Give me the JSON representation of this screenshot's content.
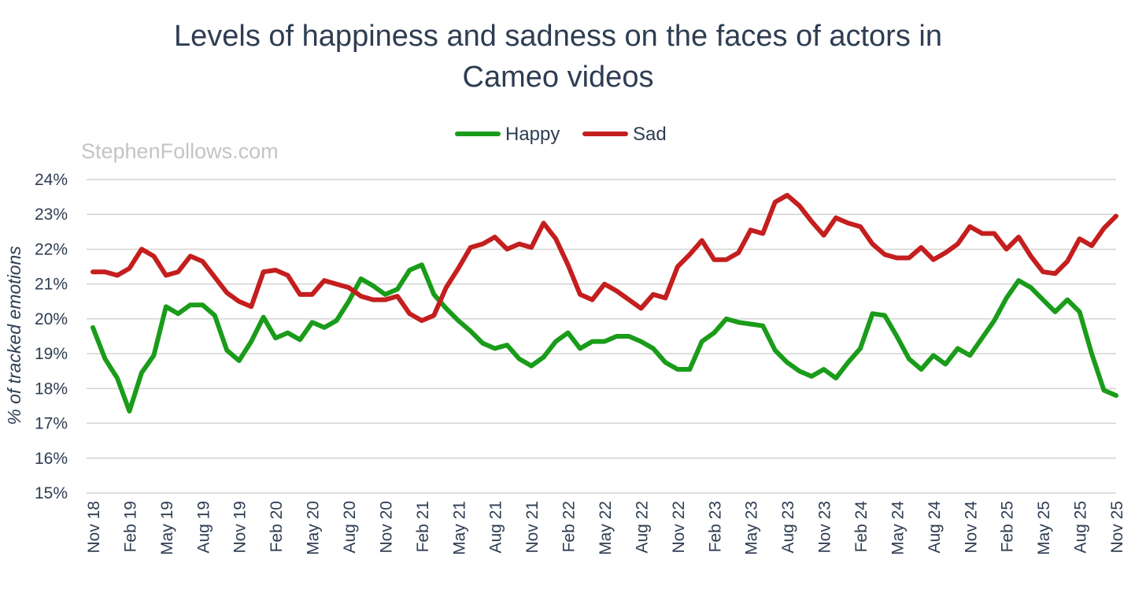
{
  "chart_data": {
    "type": "line",
    "title_lines": [
      "Levels of happiness and sadness on the faces of actors in",
      "Cameo videos"
    ],
    "ylabel": "% of tracked emotions",
    "xlabel": "",
    "watermark": "StephenFollows.com",
    "ylim": [
      15,
      24
    ],
    "yticks": [
      15,
      16,
      17,
      18,
      19,
      20,
      21,
      22,
      23,
      24
    ],
    "ytick_labels": [
      "15%",
      "16%",
      "17%",
      "18%",
      "19%",
      "20%",
      "21%",
      "22%",
      "23%",
      "24%"
    ],
    "grid": true,
    "legend_position": "top-center",
    "x_start": "Nov 18",
    "num_points": 85,
    "xtick_labels": [
      "Nov 18",
      "Feb 19",
      "May 19",
      "Aug 19",
      "Nov 19",
      "Feb 20",
      "May 20",
      "Aug 20",
      "Nov 20",
      "Feb 21",
      "May 21",
      "Aug 21",
      "Nov 21",
      "Feb 22",
      "May 22",
      "Aug 22",
      "Nov 22",
      "Feb 23",
      "May 23",
      "Aug 23",
      "Nov 23",
      "Feb 24",
      "May 24",
      "Aug 24",
      "Nov 24",
      "Feb 25",
      "May 25",
      "Aug 25",
      "Nov 25"
    ],
    "series": [
      {
        "name": "Happy",
        "color": "#1a9c1a",
        "values": [
          19.75,
          18.85,
          18.3,
          17.35,
          18.45,
          18.95,
          20.35,
          20.15,
          20.4,
          20.4,
          20.1,
          19.1,
          18.8,
          19.35,
          20.05,
          19.45,
          19.6,
          19.4,
          19.9,
          19.75,
          19.95,
          20.5,
          21.15,
          20.95,
          20.7,
          20.85,
          21.4,
          21.55,
          20.7,
          20.3,
          19.95,
          19.65,
          19.3,
          19.15,
          19.25,
          18.85,
          18.65,
          18.9,
          19.35,
          19.6,
          19.15,
          19.35,
          19.35,
          19.5,
          19.5,
          19.35,
          19.15,
          18.75,
          18.55,
          18.55,
          19.35,
          19.6,
          20.0,
          19.9,
          19.85,
          19.8,
          19.1,
          18.75,
          18.5,
          18.35,
          18.55,
          18.3,
          18.75,
          19.15,
          20.15,
          20.1,
          19.5,
          18.85,
          18.55,
          18.95,
          18.7,
          19.15,
          18.95,
          19.45,
          19.95,
          20.6,
          21.1,
          20.9,
          20.55,
          20.2,
          20.55,
          20.2,
          19.0,
          17.95,
          17.8
        ]
      },
      {
        "name": "Sad",
        "color": "#c41e1e",
        "values": [
          21.35,
          21.35,
          21.25,
          21.45,
          22.0,
          21.8,
          21.25,
          21.35,
          21.8,
          21.65,
          21.2,
          20.75,
          20.5,
          20.35,
          21.35,
          21.4,
          21.25,
          20.7,
          20.7,
          21.1,
          21.0,
          20.9,
          20.65,
          20.55,
          20.55,
          20.65,
          20.15,
          19.95,
          20.1,
          20.9,
          21.45,
          22.05,
          22.15,
          22.35,
          22.0,
          22.15,
          22.05,
          22.75,
          22.3,
          21.55,
          20.7,
          20.55,
          21.0,
          20.8,
          20.55,
          20.3,
          20.7,
          20.6,
          21.5,
          21.85,
          22.25,
          21.7,
          21.7,
          21.9,
          22.55,
          22.45,
          23.35,
          23.55,
          23.25,
          22.8,
          22.4,
          22.9,
          22.75,
          22.65,
          22.15,
          21.85,
          21.75,
          21.75,
          22.05,
          21.7,
          21.9,
          22.15,
          22.65,
          22.45,
          22.45,
          22.0,
          22.35,
          21.8,
          21.35,
          21.3,
          21.65,
          22.3,
          22.1,
          22.6,
          22.95
        ]
      }
    ]
  }
}
